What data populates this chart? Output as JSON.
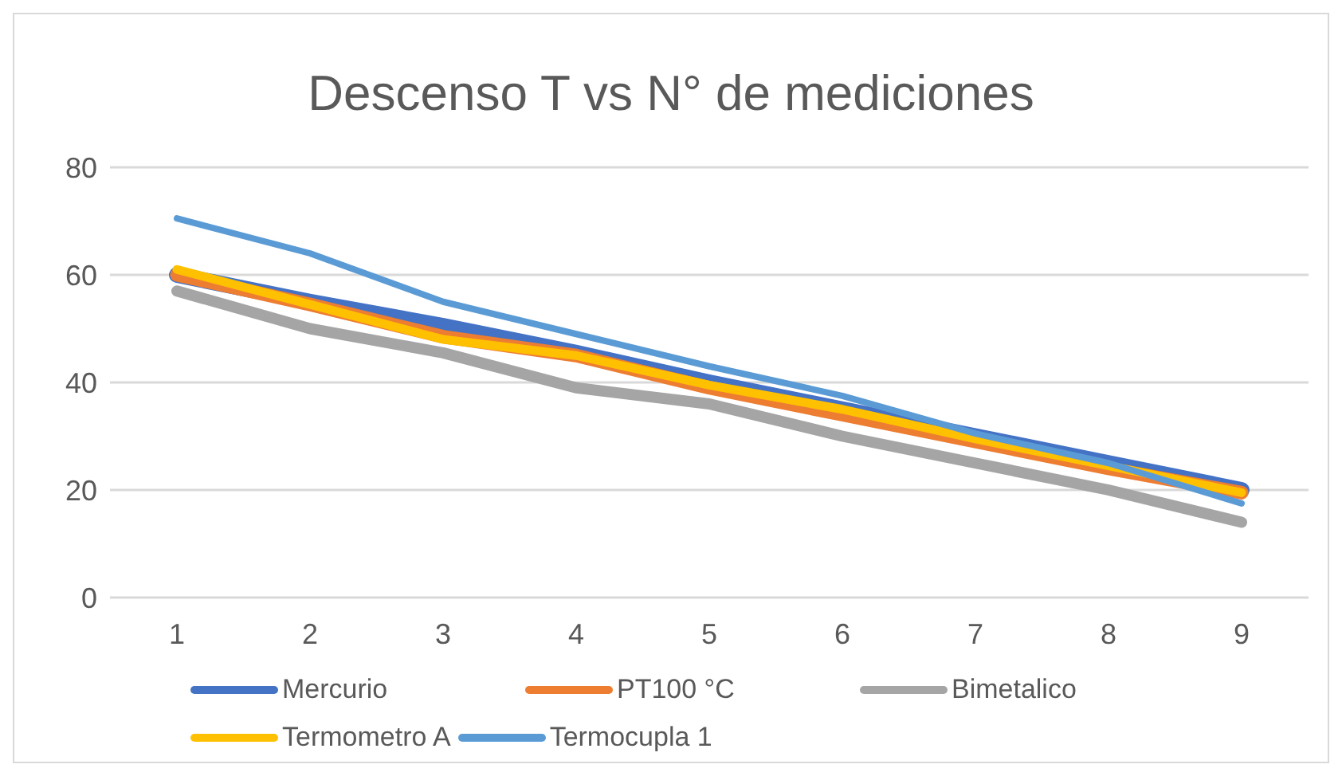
{
  "chart_data": {
    "type": "line",
    "title": "Descenso T vs N° de mediciones",
    "categories": [
      "1",
      "2",
      "3",
      "4",
      "5",
      "6",
      "7",
      "8",
      "9"
    ],
    "series": [
      {
        "name": "Mercurio",
        "color": "#4472c4",
        "values": [
          60,
          55,
          50.5,
          45.5,
          40,
          35,
          30,
          25,
          20
        ]
      },
      {
        "name": "PT100 °C",
        "color": "#ed7d31",
        "values": [
          60,
          54.5,
          48.5,
          45,
          39,
          34,
          29,
          24,
          19.5
        ]
      },
      {
        "name": "Bimetalico",
        "color": "#a5a5a5",
        "values": [
          57,
          50,
          45.5,
          39,
          36,
          30,
          25,
          20,
          14
        ]
      },
      {
        "name": "Termometro A",
        "color": "#ffc000",
        "values": [
          61,
          54.5,
          48,
          45,
          39.5,
          35,
          29.5,
          24.5,
          19.5
        ]
      },
      {
        "name": "Termocupla 1",
        "color": "#5b9bd5",
        "values": [
          70.5,
          64,
          55,
          49,
          43,
          37.5,
          30.5,
          25,
          17.5
        ]
      }
    ],
    "ylim": [
      0,
      80
    ],
    "yticks": [
      0,
      20,
      40,
      60,
      80
    ],
    "grid": "y",
    "legend": "bottom",
    "marker": "none",
    "line_style": "solid"
  }
}
